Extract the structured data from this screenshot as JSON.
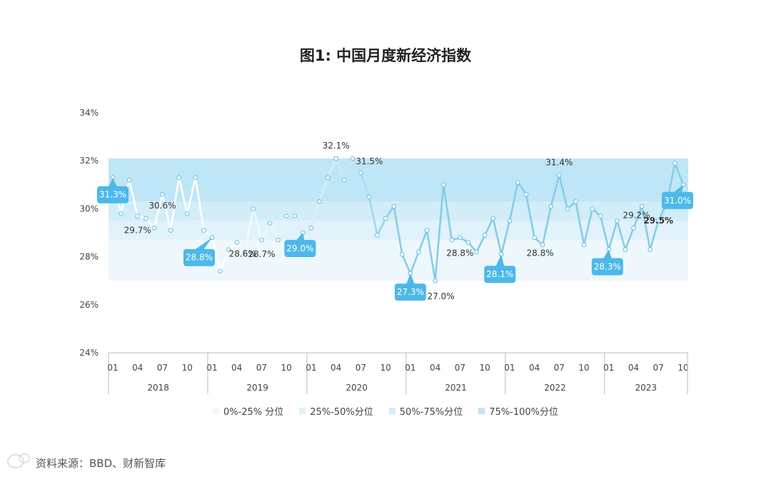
{
  "chart_data": {
    "type": "line",
    "title": "图1: 中国月度新经济指数",
    "ylim": [
      24,
      34
    ],
    "yticks": [
      24,
      26,
      28,
      30,
      32,
      34
    ],
    "ytick_labels": [
      "24%",
      "26%",
      "28%",
      "30%",
      "32%",
      "34%"
    ],
    "bands": [
      {
        "name": "0%-25% 分位",
        "range": [
          27.0,
          28.7
        ],
        "color": "#eef8fc"
      },
      {
        "name": "25%-50%分位",
        "range": [
          28.7,
          29.5
        ],
        "color": "#e1f2fa"
      },
      {
        "name": "50%-75%分位",
        "range": [
          29.5,
          30.3
        ],
        "color": "#d2edf8"
      },
      {
        "name": "75%-100%分位",
        "range": [
          30.3,
          32.1
        ],
        "color": "#bfe6f6"
      }
    ],
    "years": [
      "2018",
      "2019",
      "2020",
      "2021",
      "2022",
      "2023"
    ],
    "month_tick_labels": [
      "01",
      "04",
      "07",
      "10"
    ],
    "series": [
      {
        "values": [
          31.3,
          29.8,
          31.2,
          29.7,
          29.6,
          29.2,
          30.6,
          29.1,
          31.3,
          29.8,
          31.3,
          29.1,
          28.8,
          27.4,
          28.3,
          28.6,
          28.2,
          30.0,
          28.7,
          29.4,
          28.7,
          29.7,
          29.7,
          29.0,
          29.2,
          30.3,
          31.3,
          32.1,
          31.2,
          32.1,
          31.5,
          30.5,
          28.9,
          29.6,
          30.1,
          28.1,
          27.3,
          28.2,
          29.1,
          27.0,
          31.0,
          28.7,
          28.8,
          28.6,
          28.2,
          28.9,
          29.6,
          28.1,
          29.5,
          31.1,
          30.6,
          28.8,
          28.5,
          30.1,
          31.4,
          30.0,
          30.3,
          28.5,
          30.0,
          29.7,
          28.3,
          29.5,
          28.3,
          29.2,
          30.1,
          28.3,
          29.5,
          30.2,
          31.9,
          31.0
        ]
      }
    ],
    "annotations": [
      {
        "index": 0,
        "label": "31.3%",
        "style": "callout"
      },
      {
        "index": 3,
        "label": "29.7%",
        "style": "text"
      },
      {
        "index": 6,
        "label": "30.6%",
        "style": "text"
      },
      {
        "index": 12,
        "label": "28.8%",
        "style": "callout"
      },
      {
        "index": 15,
        "label": "28.6%",
        "style": "text"
      },
      {
        "index": 18,
        "label": "28.7%",
        "style": "text"
      },
      {
        "index": 23,
        "label": "29.0%",
        "style": "callout"
      },
      {
        "index": 27,
        "label": "32.1%",
        "style": "text"
      },
      {
        "index": 30,
        "label": "31.5%",
        "style": "text"
      },
      {
        "index": 36,
        "label": "27.3%",
        "style": "callout"
      },
      {
        "index": 39,
        "label": "27.0%",
        "style": "text"
      },
      {
        "index": 42,
        "label": "28.8%",
        "style": "text"
      },
      {
        "index": 47,
        "label": "28.1%",
        "style": "callout"
      },
      {
        "index": 51,
        "label": "28.8%",
        "style": "text"
      },
      {
        "index": 54,
        "label": "31.4%",
        "style": "text"
      },
      {
        "index": 60,
        "label": "28.3%",
        "style": "callout"
      },
      {
        "index": 63,
        "label": "29.2%",
        "style": "text"
      },
      {
        "index": 66,
        "label": "29.5%",
        "style": "text-bold"
      },
      {
        "index": 69,
        "label": "31.0%",
        "style": "callout"
      }
    ],
    "legend": {
      "position": "bottom"
    },
    "grid": false,
    "colors": {
      "line_light": "#ffffff",
      "line_mid": "#d4edf7",
      "line_dark": "#86cde8",
      "callout": "#4db8ea",
      "callout_text": "#ffffff",
      "marker_stroke": "#6fc2e4",
      "axis": "#bbbbbb",
      "tick_text": "#444444"
    }
  },
  "source": "资料来源：BBD、财新智库"
}
